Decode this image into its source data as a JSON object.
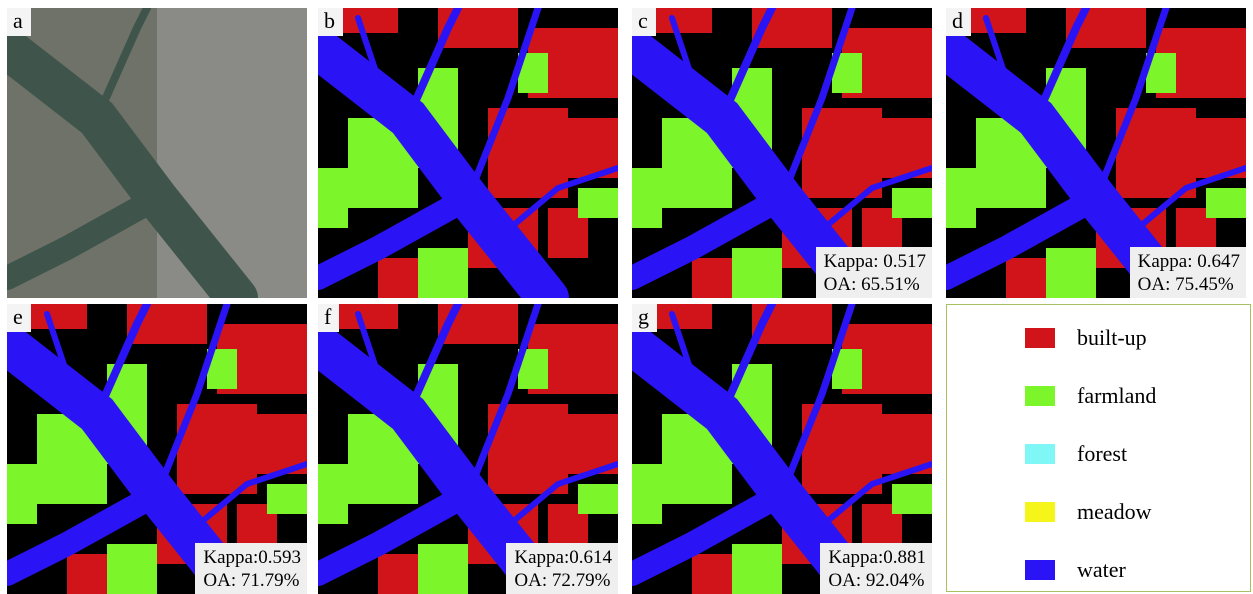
{
  "panels": [
    {
      "label": "a"
    },
    {
      "label": "b"
    },
    {
      "label": "c",
      "kappa": "Kappa: 0.517",
      "oa": "OA: 65.51%"
    },
    {
      "label": "d",
      "kappa": "Kappa: 0.647",
      "oa": "OA: 75.45%"
    },
    {
      "label": "e",
      "kappa": "Kappa:0.593",
      "oa": "OA: 71.79%"
    },
    {
      "label": "f",
      "kappa": "Kappa:0.614",
      "oa": "OA: 72.79%"
    },
    {
      "label": "g",
      "kappa": "Kappa:0.881",
      "oa": "OA: 92.04%"
    }
  ],
  "legend": [
    {
      "label": "built-up",
      "color": "#d0141a"
    },
    {
      "label": "farmland",
      "color": "#7cf52a"
    },
    {
      "label": "forest",
      "color": "#7ff7f7"
    },
    {
      "label": "meadow",
      "color": "#f5f51a"
    },
    {
      "label": "water",
      "color": "#2a14f5"
    }
  ]
}
